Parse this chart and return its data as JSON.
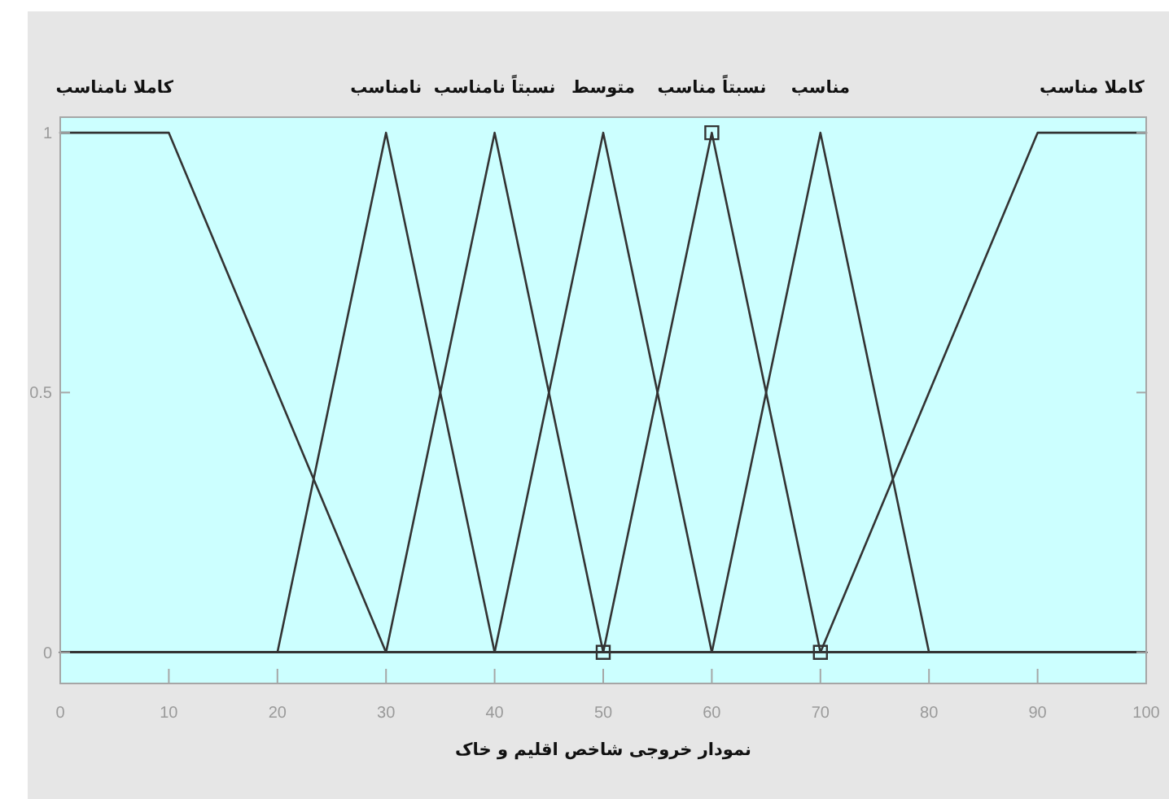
{
  "chart_data": {
    "type": "line",
    "xlabel": "نمودار خروجی شاخص اقلیم و خاک",
    "xlim": [
      0,
      100
    ],
    "xticks": [
      0,
      10,
      20,
      30,
      40,
      50,
      60,
      70,
      80,
      90,
      100
    ],
    "ylim": [
      -0.06,
      1.03
    ],
    "yticks": [
      0,
      0.5,
      1
    ],
    "line_style": "solid",
    "series": [
      {
        "name": "کاملا نامناسب",
        "color": "#333333",
        "marker": "none",
        "x": [
          0,
          10,
          30,
          100
        ],
        "values": [
          1,
          1,
          0,
          0
        ]
      },
      {
        "name": "نامناسب",
        "color": "#333333",
        "marker": "none",
        "x": [
          0,
          20,
          30,
          40,
          100
        ],
        "values": [
          0,
          0,
          1,
          0,
          0
        ]
      },
      {
        "name": "نسبتاً نامناسب",
        "color": "#333333",
        "marker": "none",
        "x": [
          0,
          30,
          40,
          50,
          100
        ],
        "values": [
          0,
          0,
          1,
          0,
          0
        ]
      },
      {
        "name": "متوسط",
        "color": "#333333",
        "marker": "none",
        "x": [
          0,
          40,
          50,
          60,
          100
        ],
        "values": [
          0,
          0,
          1,
          0,
          0
        ]
      },
      {
        "name": "نسبتاً مناسب",
        "color": "#333333",
        "marker": "none",
        "x": [
          0,
          50,
          60,
          70,
          100
        ],
        "values": [
          0,
          0,
          1,
          0,
          0
        ]
      },
      {
        "name": "مناسب",
        "color": "#333333",
        "marker": "none",
        "x": [
          0,
          60,
          70,
          80,
          100
        ],
        "values": [
          0,
          0,
          1,
          0,
          0
        ]
      },
      {
        "name": "کاملا مناسب",
        "color": "#333333",
        "marker": "none",
        "x": [
          0,
          70,
          90,
          100
        ],
        "values": [
          0,
          0,
          1,
          1
        ]
      },
      {
        "type": "scatter",
        "color": "#333333",
        "marker": "square",
        "x": [
          50,
          60,
          70
        ],
        "values": [
          0,
          1,
          0
        ]
      }
    ]
  }
}
